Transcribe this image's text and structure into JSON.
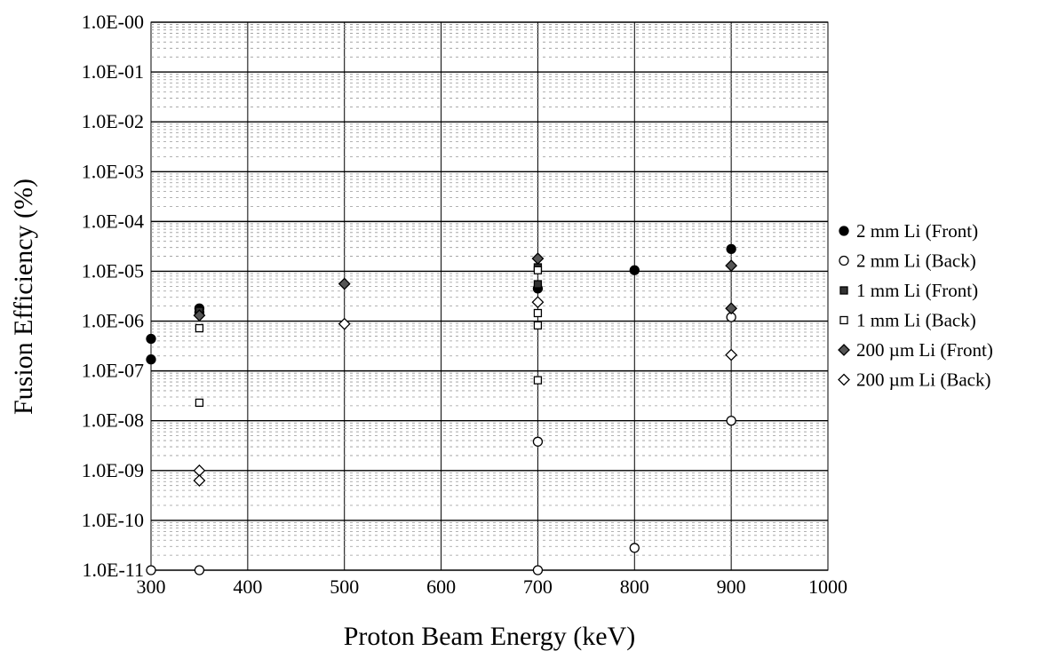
{
  "chart_data": {
    "type": "scatter",
    "title": "",
    "xlabel": "Proton Beam Energy (keV)",
    "ylabel": "Fusion Efficiency (%)",
    "xlim": [
      300,
      1000
    ],
    "ylim": [
      1e-11,
      1
    ],
    "yscale": "log",
    "grid": true,
    "legend_position": "right",
    "x_ticks": [
      {
        "value": 300,
        "label": "300"
      },
      {
        "value": 400,
        "label": "400"
      },
      {
        "value": 500,
        "label": "500"
      },
      {
        "value": 600,
        "label": "600"
      },
      {
        "value": 700,
        "label": "700"
      },
      {
        "value": 800,
        "label": "800"
      },
      {
        "value": 900,
        "label": "900"
      },
      {
        "value": 1000,
        "label": "1000"
      }
    ],
    "y_ticks": [
      {
        "value": 1,
        "label": "1.0E-00"
      },
      {
        "value": 0.1,
        "label": "1.0E-01"
      },
      {
        "value": 0.01,
        "label": "1.0E-02"
      },
      {
        "value": 0.001,
        "label": "1.0E-03"
      },
      {
        "value": 0.0001,
        "label": "1.0E-04"
      },
      {
        "value": 1e-05,
        "label": "1.0E-05"
      },
      {
        "value": 1e-06,
        "label": "1.0E-06"
      },
      {
        "value": 1e-07,
        "label": "1.0E-07"
      },
      {
        "value": 1e-08,
        "label": "1.0E-08"
      },
      {
        "value": 1e-09,
        "label": "1.0E-09"
      },
      {
        "value": 1e-10,
        "label": "1.0E-10"
      },
      {
        "value": 1e-11,
        "label": "1.0E-11"
      }
    ],
    "series": [
      {
        "name": "2 mm Li (Front)",
        "marker": "circle-filled",
        "points": [
          {
            "x": 300,
            "y": 4.4e-07
          },
          {
            "x": 300,
            "y": 1.7e-07
          },
          {
            "x": 350,
            "y": 1.8e-06
          },
          {
            "x": 350,
            "y": 1.5e-06
          },
          {
            "x": 700,
            "y": 4.5e-06
          },
          {
            "x": 800,
            "y": 1.05e-05
          },
          {
            "x": 900,
            "y": 2.8e-05
          }
        ]
      },
      {
        "name": "2 mm Li (Back)",
        "marker": "circle-open",
        "points": [
          {
            "x": 300,
            "y": 1e-11
          },
          {
            "x": 350,
            "y": 1e-11
          },
          {
            "x": 700,
            "y": 1e-11
          },
          {
            "x": 700,
            "y": 3.8e-09
          },
          {
            "x": 800,
            "y": 2.8e-11
          },
          {
            "x": 900,
            "y": 1e-08
          },
          {
            "x": 900,
            "y": 1.2e-06
          }
        ]
      },
      {
        "name": "1 mm Li (Front)",
        "marker": "square-filled",
        "points": [
          {
            "x": 350,
            "y": 1.6e-06
          },
          {
            "x": 700,
            "y": 1.2e-05
          },
          {
            "x": 700,
            "y": 5.5e-06
          }
        ]
      },
      {
        "name": "1 mm Li (Back)",
        "marker": "square-open",
        "points": [
          {
            "x": 350,
            "y": 7.2e-07
          },
          {
            "x": 350,
            "y": 2.3e-08
          },
          {
            "x": 700,
            "y": 6.5e-08
          },
          {
            "x": 700,
            "y": 8.2e-07
          },
          {
            "x": 700,
            "y": 1.45e-06
          },
          {
            "x": 700,
            "y": 1.05e-05
          }
        ]
      },
      {
        "name": "200 µm Li (Front)",
        "marker": "diamond-filled",
        "points": [
          {
            "x": 350,
            "y": 1.3e-06
          },
          {
            "x": 500,
            "y": 5.6e-06
          },
          {
            "x": 700,
            "y": 1.8e-05
          },
          {
            "x": 900,
            "y": 1.3e-05
          },
          {
            "x": 900,
            "y": 1.8e-06
          }
        ]
      },
      {
        "name": "200 µm Li (Back)",
        "marker": "diamond-open",
        "points": [
          {
            "x": 350,
            "y": 1e-09
          },
          {
            "x": 350,
            "y": 6.3e-10
          },
          {
            "x": 500,
            "y": 8.8e-07
          },
          {
            "x": 700,
            "y": 2.4e-06
          },
          {
            "x": 900,
            "y": 2.1e-07
          }
        ]
      }
    ]
  }
}
